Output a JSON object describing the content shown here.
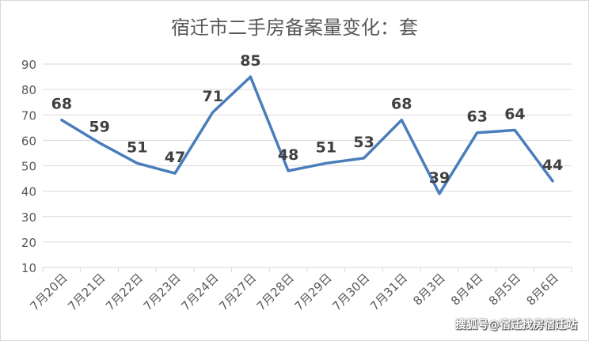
{
  "chart_data": {
    "type": "line",
    "title": "宿迁市二手房备案量变化：套",
    "categories": [
      "7月20日",
      "7月21日",
      "7月22日",
      "7月23日",
      "7月24日",
      "7月27日",
      "7月28日",
      "7月29日",
      "7月30日",
      "7月31日",
      "8月3日",
      "8月4日",
      "8月5日",
      "8月6日"
    ],
    "series": [
      {
        "values": [
          68,
          59,
          51,
          47,
          71,
          85,
          48,
          51,
          53,
          68,
          39,
          63,
          64,
          44
        ],
        "color": "#4a7ebb"
      }
    ],
    "ylim": [
      10,
      90
    ],
    "yticks": [
      "10",
      "20",
      "30",
      "40",
      "50",
      "60",
      "70",
      "80",
      "90"
    ],
    "grid": true,
    "legend": "none"
  },
  "watermark": "搜狐号@宿迁找房宿迁站"
}
